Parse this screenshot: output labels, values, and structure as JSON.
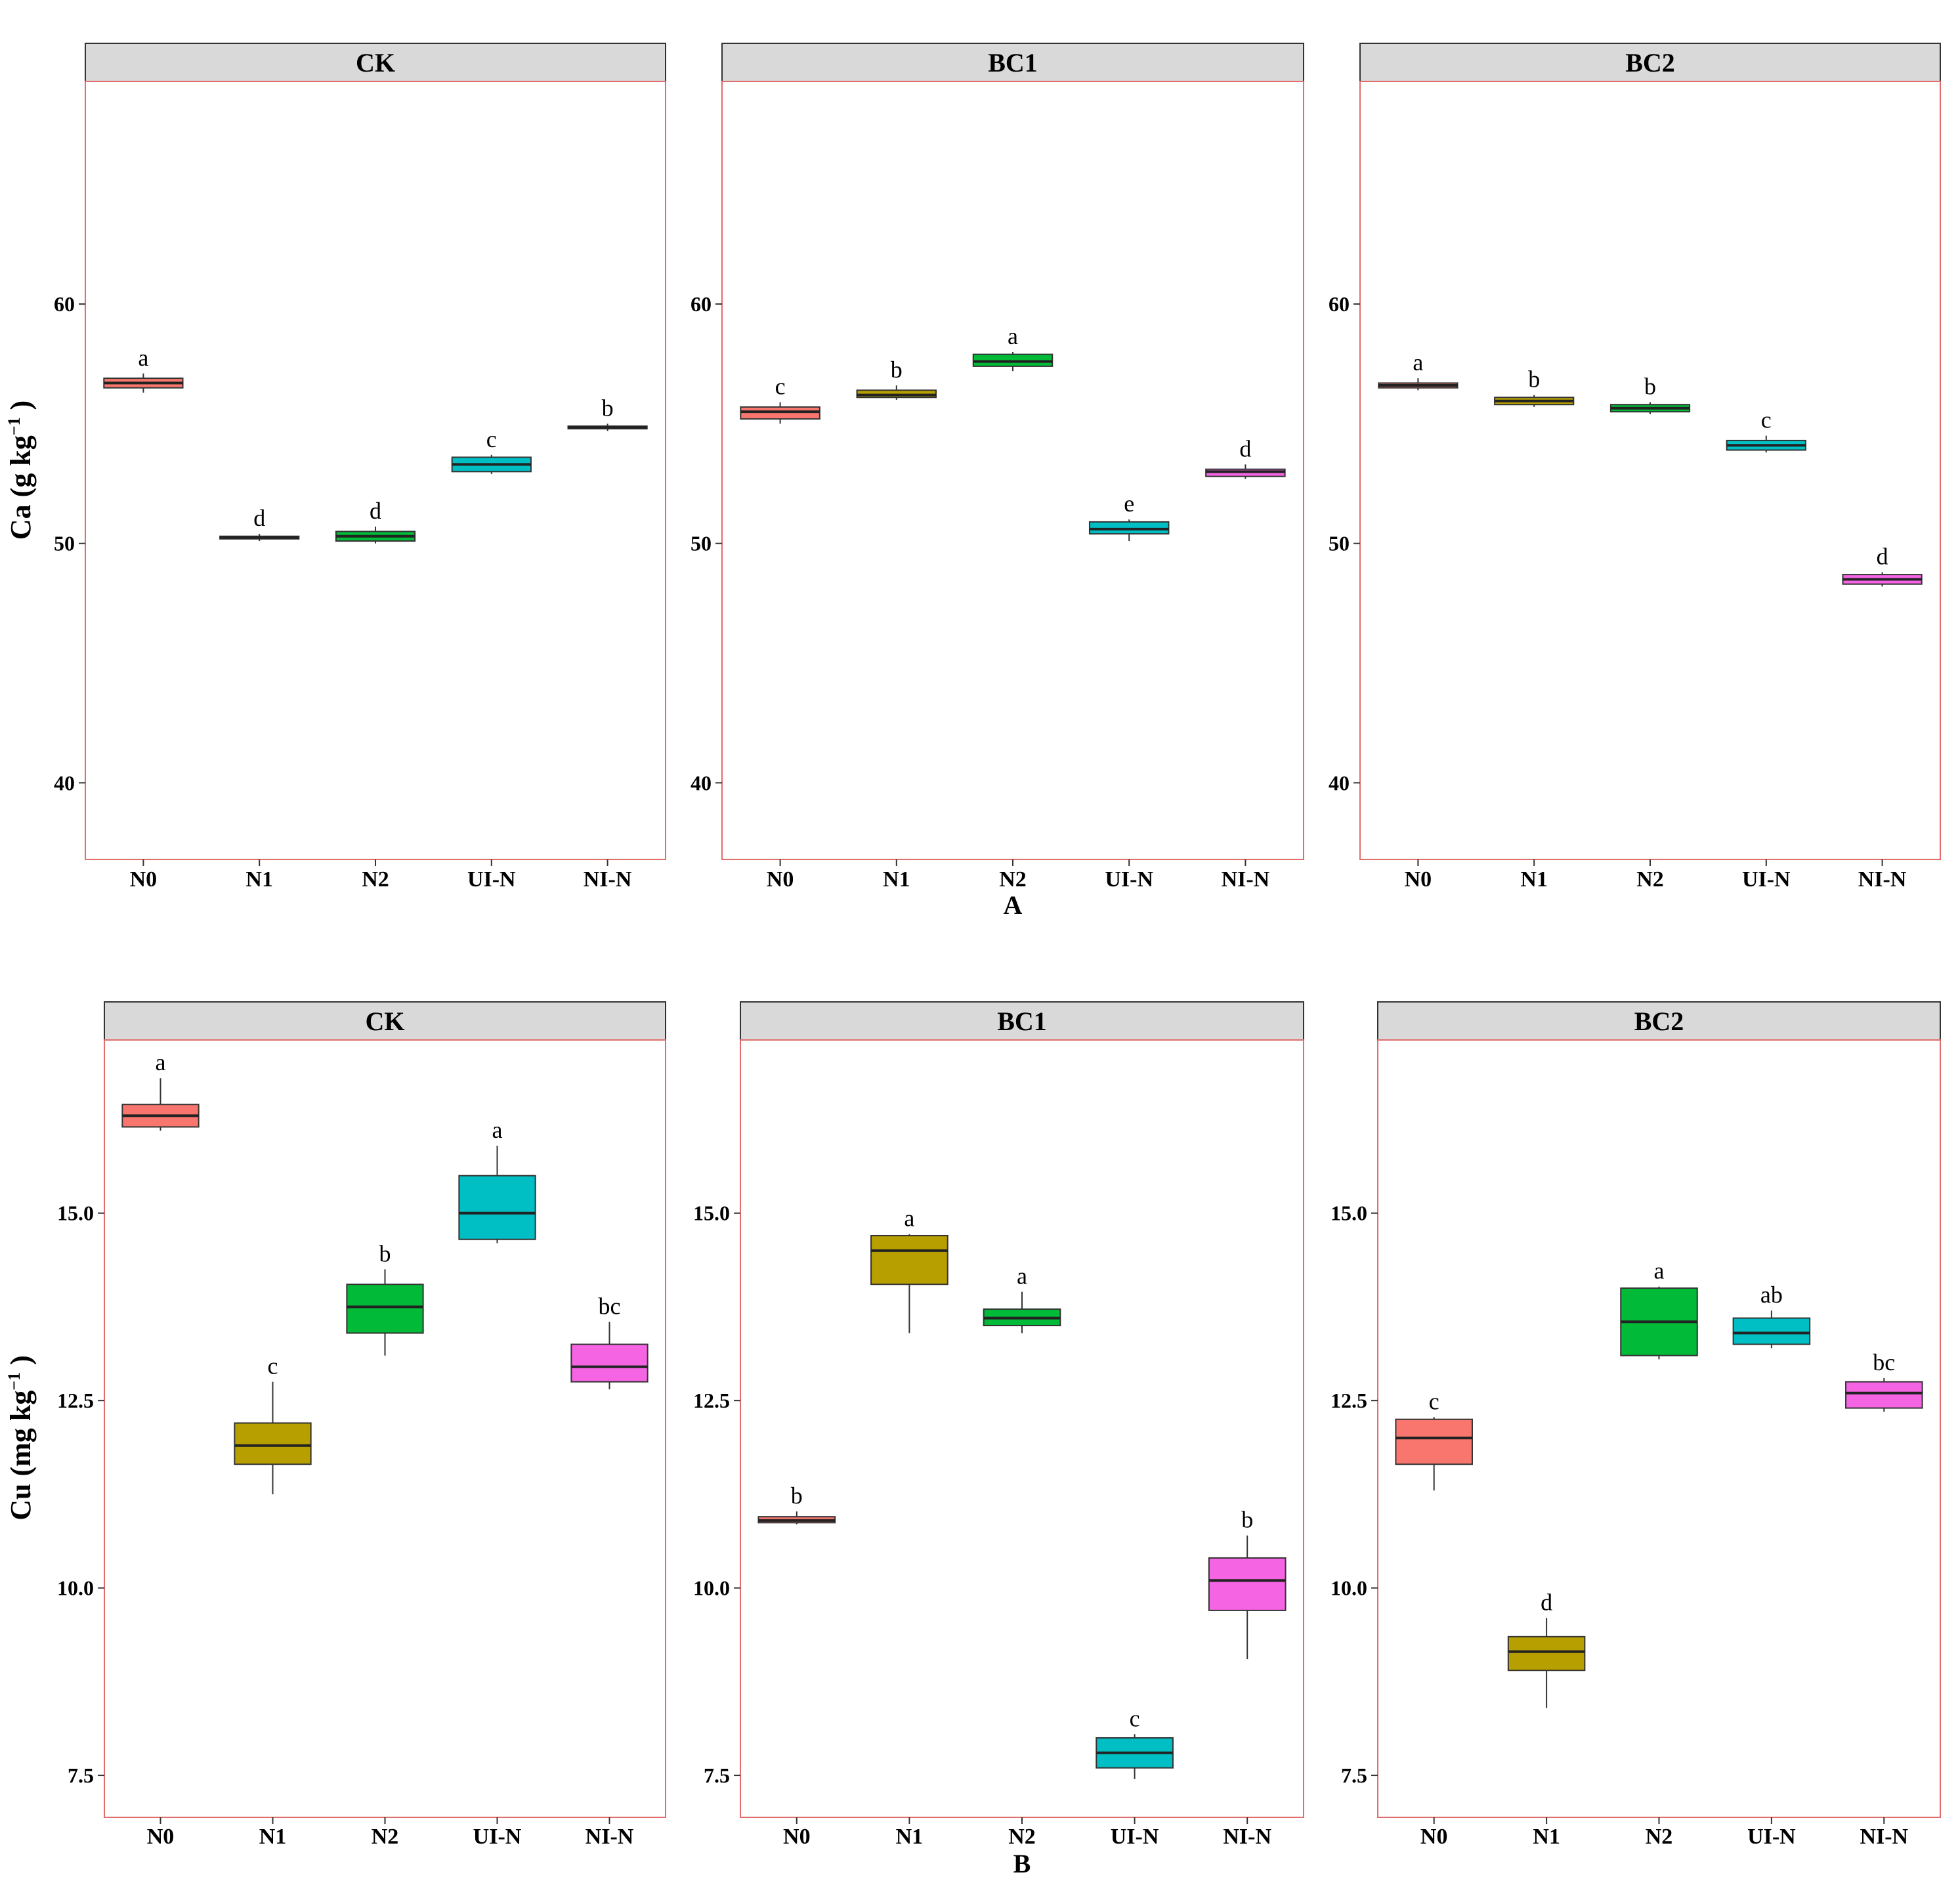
{
  "chart_data": [
    {
      "type": "box",
      "sublabel": "A",
      "ylabel_main": "Ca",
      "ylabel_unit": "(g kg",
      "ylabel_sup": "−1",
      "ylabel_close": ")",
      "ylim": [
        36.8,
        69.3
      ],
      "yticks": [
        {
          "value": 40,
          "label": "40"
        },
        {
          "value": 50,
          "label": "50"
        },
        {
          "value": 60,
          "label": "60"
        }
      ],
      "categories": [
        "N0",
        "N1",
        "N2",
        "UI-N",
        "NI-N"
      ],
      "panels": [
        {
          "title": "CK",
          "boxes": [
            {
              "cat": "N0",
              "min": 56.3,
              "q1": 56.5,
              "median": 56.7,
              "q3": 56.9,
              "max": 57.1,
              "letter": "a",
              "color": "#F8766D"
            },
            {
              "cat": "N1",
              "min": 50.1,
              "q1": 50.2,
              "median": 50.25,
              "q3": 50.3,
              "max": 50.4,
              "letter": "d",
              "color": "#B79F00"
            },
            {
              "cat": "N2",
              "min": 50.0,
              "q1": 50.1,
              "median": 50.3,
              "q3": 50.5,
              "max": 50.7,
              "letter": "d",
              "color": "#00BA38"
            },
            {
              "cat": "UI-N",
              "min": 52.9,
              "q1": 53.0,
              "median": 53.3,
              "q3": 53.6,
              "max": 53.7,
              "letter": "c",
              "color": "#00BFC4"
            },
            {
              "cat": "NI-N",
              "min": 54.7,
              "q1": 54.8,
              "median": 54.85,
              "q3": 54.9,
              "max": 55.0,
              "letter": "b",
              "color": "#F564E3"
            }
          ]
        },
        {
          "title": "BC1",
          "boxes": [
            {
              "cat": "N0",
              "min": 55.0,
              "q1": 55.2,
              "median": 55.5,
              "q3": 55.7,
              "max": 55.9,
              "letter": "c",
              "color": "#F8766D"
            },
            {
              "cat": "N1",
              "min": 56.0,
              "q1": 56.1,
              "median": 56.2,
              "q3": 56.4,
              "max": 56.6,
              "letter": "b",
              "color": "#B79F00"
            },
            {
              "cat": "N2",
              "min": 57.2,
              "q1": 57.4,
              "median": 57.6,
              "q3": 57.9,
              "max": 58.0,
              "letter": "a",
              "color": "#00BA38"
            },
            {
              "cat": "UI-N",
              "min": 50.1,
              "q1": 50.4,
              "median": 50.6,
              "q3": 50.9,
              "max": 51.0,
              "letter": "e",
              "color": "#00BFC4"
            },
            {
              "cat": "NI-N",
              "min": 52.7,
              "q1": 52.8,
              "median": 53.0,
              "q3": 53.1,
              "max": 53.3,
              "letter": "d",
              "color": "#F564E3"
            }
          ]
        },
        {
          "title": "BC2",
          "boxes": [
            {
              "cat": "N0",
              "min": 56.4,
              "q1": 56.5,
              "median": 56.6,
              "q3": 56.7,
              "max": 56.9,
              "letter": "a",
              "color": "#F8766D"
            },
            {
              "cat": "N1",
              "min": 55.7,
              "q1": 55.8,
              "median": 55.95,
              "q3": 56.1,
              "max": 56.2,
              "letter": "b",
              "color": "#B79F00"
            },
            {
              "cat": "N2",
              "min": 55.4,
              "q1": 55.5,
              "median": 55.65,
              "q3": 55.8,
              "max": 55.9,
              "letter": "b",
              "color": "#00BA38"
            },
            {
              "cat": "UI-N",
              "min": 53.8,
              "q1": 53.9,
              "median": 54.1,
              "q3": 54.3,
              "max": 54.5,
              "letter": "c",
              "color": "#00BFC4"
            },
            {
              "cat": "NI-N",
              "min": 48.2,
              "q1": 48.3,
              "median": 48.5,
              "q3": 48.7,
              "max": 48.8,
              "letter": "d",
              "color": "#F564E3"
            }
          ]
        }
      ]
    },
    {
      "type": "box",
      "sublabel": "B",
      "ylabel_main": "Cu",
      "ylabel_unit": "(mg kg",
      "ylabel_sup": "−1",
      "ylabel_close": ")",
      "ylim": [
        6.94,
        17.31
      ],
      "yticks": [
        {
          "value": 7.5,
          "label": "7.5"
        },
        {
          "value": 10.0,
          "label": "10.0"
        },
        {
          "value": 12.5,
          "label": "12.5"
        },
        {
          "value": 15.0,
          "label": "15.0"
        }
      ],
      "categories": [
        "N0",
        "N1",
        "N2",
        "UI-N",
        "NI-N"
      ],
      "panels": [
        {
          "title": "CK",
          "boxes": [
            {
              "cat": "N0",
              "min": 16.1,
              "q1": 16.15,
              "median": 16.3,
              "q3": 16.45,
              "max": 16.8,
              "letter": "a",
              "color": "#F8766D"
            },
            {
              "cat": "N1",
              "min": 11.25,
              "q1": 11.65,
              "median": 11.9,
              "q3": 12.2,
              "max": 12.75,
              "letter": "c",
              "color": "#B79F00"
            },
            {
              "cat": "N2",
              "min": 13.1,
              "q1": 13.4,
              "median": 13.75,
              "q3": 14.05,
              "max": 14.25,
              "letter": "b",
              "color": "#00BA38"
            },
            {
              "cat": "UI-N",
              "min": 14.6,
              "q1": 14.65,
              "median": 15.0,
              "q3": 15.5,
              "max": 15.9,
              "letter": "a",
              "color": "#00BFC4"
            },
            {
              "cat": "NI-N",
              "min": 12.65,
              "q1": 12.75,
              "median": 12.95,
              "q3": 13.25,
              "max": 13.55,
              "letter": "bc",
              "color": "#F564E3"
            }
          ]
        },
        {
          "title": "BC1",
          "boxes": [
            {
              "cat": "N0",
              "min": 10.85,
              "q1": 10.87,
              "median": 10.9,
              "q3": 10.95,
              "max": 11.02,
              "letter": "b",
              "color": "#F8766D"
            },
            {
              "cat": "N1",
              "min": 13.4,
              "q1": 14.05,
              "median": 14.5,
              "q3": 14.7,
              "max": 14.72,
              "letter": "a",
              "color": "#B79F00"
            },
            {
              "cat": "N2",
              "min": 13.4,
              "q1": 13.5,
              "median": 13.6,
              "q3": 13.72,
              "max": 13.95,
              "letter": "a",
              "color": "#00BA38"
            },
            {
              "cat": "UI-N",
              "min": 7.45,
              "q1": 7.6,
              "median": 7.8,
              "q3": 8.0,
              "max": 8.05,
              "letter": "c",
              "color": "#00BFC4"
            },
            {
              "cat": "NI-N",
              "min": 9.05,
              "q1": 9.7,
              "median": 10.1,
              "q3": 10.4,
              "max": 10.7,
              "letter": "b",
              "color": "#F564E3"
            }
          ]
        },
        {
          "title": "BC2",
          "boxes": [
            {
              "cat": "N0",
              "min": 11.3,
              "q1": 11.65,
              "median": 12.0,
              "q3": 12.25,
              "max": 12.28,
              "letter": "c",
              "color": "#F8766D"
            },
            {
              "cat": "N1",
              "min": 8.4,
              "q1": 8.9,
              "median": 9.15,
              "q3": 9.35,
              "max": 9.6,
              "letter": "d",
              "color": "#B79F00"
            },
            {
              "cat": "N2",
              "min": 13.05,
              "q1": 13.1,
              "median": 13.55,
              "q3": 14.0,
              "max": 14.02,
              "letter": "a",
              "color": "#00BA38"
            },
            {
              "cat": "UI-N",
              "min": 13.2,
              "q1": 13.25,
              "median": 13.4,
              "q3": 13.6,
              "max": 13.7,
              "letter": "ab",
              "color": "#00BFC4"
            },
            {
              "cat": "NI-N",
              "min": 12.35,
              "q1": 12.4,
              "median": 12.6,
              "q3": 12.75,
              "max": 12.8,
              "letter": "bc",
              "color": "#F564E3"
            }
          ]
        }
      ]
    }
  ]
}
